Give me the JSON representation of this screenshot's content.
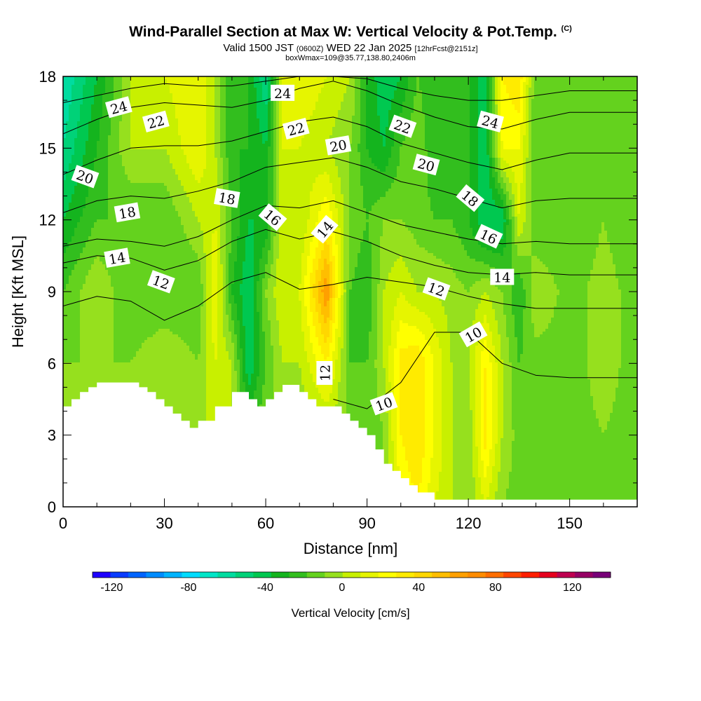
{
  "chart_data": {
    "type": "heatmap",
    "title": "Wind-Parallel Section at Max W: Vertical Velocity & Pot.Temp.",
    "title_mark": "(C)",
    "subtitle_main_a": "Valid 1500 JST",
    "subtitle_small_a": "(0600Z)",
    "subtitle_main_b": "WED 22 Jan 2025",
    "subtitle_small_b": "[12hrFcst@2151z]",
    "box_line": "boxWmax=109@35.77,138.80,2406m",
    "xlabel": "Distance [nm]",
    "ylabel": "Height [Kft MSL]",
    "xlim": [
      0,
      170
    ],
    "ylim": [
      0,
      18
    ],
    "x_ticks": [
      "0",
      "30",
      "60",
      "90",
      "120",
      "150"
    ],
    "x_tick_values": [
      0,
      30,
      60,
      90,
      120,
      150
    ],
    "y_ticks": [
      "0",
      "3",
      "6",
      "9",
      "12",
      "15",
      "18"
    ],
    "y_tick_values": [
      0,
      3,
      6,
      9,
      12,
      15,
      18
    ],
    "colorbar": {
      "title": "Vertical Velocity [cm/s]",
      "labels": [
        "-120",
        "-80",
        "-40",
        "0",
        "40",
        "80",
        "120"
      ],
      "label_values": [
        -120,
        -80,
        -40,
        0,
        40,
        80,
        120
      ],
      "min": -130,
      "max": 140,
      "step": 10,
      "colors": [
        "#1e00ff",
        "#0a3cff",
        "#0064ff",
        "#008cff",
        "#00b4ff",
        "#00dcff",
        "#00e6c8",
        "#00dca0",
        "#00d278",
        "#00c850",
        "#14b41e",
        "#32be1e",
        "#64d21e",
        "#96e01e",
        "#c8f000",
        "#e6f500",
        "#ffff00",
        "#ffeb00",
        "#ffd700",
        "#ffbe00",
        "#ffa000",
        "#ff8c00",
        "#ff6e00",
        "#ff4600",
        "#ff1e00",
        "#e6001e",
        "#be0050",
        "#960064",
        "#780078"
      ]
    },
    "vertical_velocity_cm_s": {
      "x_nm": [
        0,
        10,
        20,
        30,
        40,
        45,
        50,
        55,
        60,
        65,
        70,
        78,
        85,
        90,
        95,
        100,
        105,
        110,
        115,
        120,
        125,
        130,
        135,
        140,
        150,
        160,
        170
      ],
      "height_kft": [
        0,
        3,
        6,
        9,
        12,
        15,
        18
      ],
      "values": [
        [
          0,
          0,
          0,
          10,
          0,
          20,
          10,
          -10,
          0,
          5,
          0,
          5,
          0,
          -10,
          0,
          30,
          40,
          20,
          10,
          0,
          20,
          0,
          -5,
          -5,
          -5,
          0,
          -5
        ],
        [
          0,
          0,
          0,
          10,
          0,
          20,
          10,
          -10,
          0,
          5,
          0,
          5,
          0,
          -10,
          0,
          40,
          50,
          30,
          10,
          0,
          45,
          10,
          -5,
          -5,
          -5,
          0,
          -5
        ],
        [
          0,
          0,
          0,
          10,
          0,
          20,
          10,
          -40,
          -10,
          10,
          10,
          40,
          -10,
          -10,
          10,
          45,
          50,
          30,
          10,
          10,
          40,
          10,
          -10,
          -5,
          -5,
          5,
          -5
        ],
        [
          -10,
          10,
          -10,
          -10,
          -10,
          30,
          -20,
          -40,
          0,
          20,
          20,
          80,
          -10,
          -20,
          10,
          20,
          10,
          10,
          5,
          0,
          10,
          0,
          -20,
          10,
          -5,
          5,
          -5
        ],
        [
          -30,
          -10,
          -10,
          -10,
          10,
          20,
          -10,
          -30,
          -30,
          20,
          10,
          40,
          0,
          -10,
          0,
          0,
          -5,
          -10,
          -10,
          -20,
          -40,
          -40,
          20,
          -10,
          -10,
          0,
          -10
        ],
        [
          -50,
          -20,
          10,
          10,
          30,
          10,
          -20,
          -20,
          -30,
          20,
          20,
          10,
          0,
          -20,
          -30,
          -10,
          0,
          -20,
          -20,
          -20,
          -40,
          30,
          30,
          -10,
          -10,
          -10,
          -10
        ],
        [
          -60,
          -30,
          10,
          20,
          30,
          10,
          -20,
          -20,
          -50,
          20,
          30,
          20,
          10,
          -20,
          -40,
          -30,
          -10,
          -20,
          -20,
          -20,
          -40,
          40,
          50,
          -10,
          -10,
          -10,
          -10
        ]
      ]
    },
    "terrain_kft": {
      "x_nm": [
        0,
        2.5,
        5,
        7.5,
        10,
        15,
        20,
        22.5,
        25,
        27.5,
        30,
        32.5,
        35,
        37.5,
        40,
        45,
        50,
        52.5,
        55,
        57.5,
        60,
        62.5,
        65,
        67.5,
        70,
        72.5,
        75,
        77.5,
        80,
        82.5,
        85,
        87.5,
        90,
        92.5,
        95,
        97.5,
        100,
        102.5,
        105,
        107.5,
        110,
        115,
        120,
        125,
        130,
        135,
        140,
        150,
        160,
        170
      ],
      "height": [
        4.2,
        4.5,
        4.8,
        5.0,
        5.2,
        5.2,
        5.2,
        5.0,
        4.8,
        4.5,
        4.2,
        3.9,
        3.6,
        3.3,
        3.6,
        4.2,
        4.8,
        4.8,
        4.5,
        4.2,
        4.5,
        4.8,
        5.1,
        5.1,
        4.8,
        4.5,
        4.2,
        4.2,
        4.2,
        3.9,
        3.6,
        3.3,
        3.0,
        2.4,
        1.8,
        1.5,
        1.2,
        0.9,
        0.6,
        0.6,
        0.3,
        0.3,
        0.3,
        0.3,
        0.3,
        0.3,
        0.3,
        0.3,
        0.3,
        0.3
      ]
    },
    "potential_temperature_contours": {
      "x_nm": [
        0,
        10,
        20,
        30,
        40,
        50,
        60,
        70,
        80,
        90,
        100,
        110,
        120,
        130,
        140,
        150,
        160,
        170
      ],
      "lines": [
        {
          "level": 10,
          "height": [
            null,
            null,
            null,
            null,
            null,
            null,
            null,
            null,
            4.5,
            4.1,
            5.2,
            7.3,
            7.3,
            6.0,
            5.5,
            5.4,
            5.4,
            5.4
          ]
        },
        {
          "level": 12,
          "height": [
            8.4,
            8.8,
            8.6,
            7.8,
            8.4,
            9.4,
            9.8,
            9.1,
            9.3,
            9.6,
            9.4,
            9.2,
            8.8,
            8.5,
            8.3,
            8.3,
            8.3,
            8.3
          ]
        },
        {
          "level": 14,
          "height": [
            10.2,
            10.5,
            10.4,
            9.9,
            10.3,
            11.1,
            11.6,
            11.2,
            11.5,
            11.1,
            10.5,
            10.1,
            9.8,
            9.7,
            9.8,
            9.7,
            9.7,
            9.7
          ]
        },
        {
          "level": 16,
          "height": [
            10.9,
            11.2,
            11.1,
            10.9,
            11.3,
            12.0,
            12.6,
            12.5,
            12.8,
            12.3,
            11.8,
            11.5,
            11.2,
            11.0,
            11.1,
            11.0,
            11.0,
            11.0
          ]
        },
        {
          "level": 18,
          "height": [
            12.3,
            12.8,
            13.0,
            12.9,
            13.2,
            13.6,
            14.2,
            14.4,
            14.6,
            14.2,
            13.6,
            13.3,
            12.9,
            12.5,
            12.8,
            12.9,
            12.9,
            12.9
          ]
        },
        {
          "level": 20,
          "height": [
            13.9,
            14.5,
            15.0,
            15.1,
            15.1,
            15.3,
            15.7,
            16.1,
            16.3,
            15.9,
            15.2,
            14.8,
            14.4,
            14.1,
            14.5,
            14.8,
            14.8,
            14.8
          ]
        },
        {
          "level": 22,
          "height": [
            15.6,
            16.2,
            16.7,
            16.9,
            16.8,
            16.7,
            17.0,
            17.5,
            17.8,
            17.4,
            16.8,
            16.3,
            15.9,
            15.8,
            16.2,
            16.5,
            16.5,
            16.5
          ]
        },
        {
          "level": 24,
          "height": [
            16.9,
            17.2,
            17.5,
            17.7,
            17.6,
            17.6,
            17.8,
            18.0,
            18.0,
            17.9,
            17.5,
            17.2,
            17.0,
            17.0,
            17.2,
            17.4,
            17.4,
            17.4
          ]
        }
      ],
      "labels": [
        {
          "text": "24",
          "x": 16.5,
          "y": 16.7,
          "angle": -15
        },
        {
          "text": "22",
          "x": 27.5,
          "y": 16.1,
          "angle": -15
        },
        {
          "text": "24",
          "x": 65,
          "y": 17.3,
          "angle": 0
        },
        {
          "text": "22",
          "x": 69,
          "y": 15.8,
          "angle": -15
        },
        {
          "text": "20",
          "x": 81.5,
          "y": 15.1,
          "angle": -10
        },
        {
          "text": "22",
          "x": 100.5,
          "y": 15.9,
          "angle": 20
        },
        {
          "text": "24",
          "x": 126.5,
          "y": 16.1,
          "angle": 15
        },
        {
          "text": "20",
          "x": 6.5,
          "y": 13.8,
          "angle": 20
        },
        {
          "text": "20",
          "x": 107.5,
          "y": 14.3,
          "angle": 15
        },
        {
          "text": "18",
          "x": 19,
          "y": 12.3,
          "angle": -10
        },
        {
          "text": "18",
          "x": 48.5,
          "y": 12.9,
          "angle": 10
        },
        {
          "text": "16",
          "x": 62,
          "y": 12.1,
          "angle": 40
        },
        {
          "text": "18",
          "x": 120.5,
          "y": 12.9,
          "angle": 40
        },
        {
          "text": "14",
          "x": 77.5,
          "y": 11.6,
          "angle": -50
        },
        {
          "text": "16",
          "x": 126,
          "y": 11.3,
          "angle": 25
        },
        {
          "text": "14",
          "x": 16,
          "y": 10.4,
          "angle": -10
        },
        {
          "text": "14",
          "x": 130,
          "y": 9.6,
          "angle": 0
        },
        {
          "text": "12",
          "x": 29,
          "y": 9.4,
          "angle": 20
        },
        {
          "text": "12",
          "x": 110.5,
          "y": 9.1,
          "angle": 20
        },
        {
          "text": "10",
          "x": 121.5,
          "y": 7.2,
          "angle": -30
        },
        {
          "text": "12",
          "x": 77.5,
          "y": 5.6,
          "angle": -90
        },
        {
          "text": "10",
          "x": 95,
          "y": 4.3,
          "angle": -20
        }
      ]
    }
  }
}
